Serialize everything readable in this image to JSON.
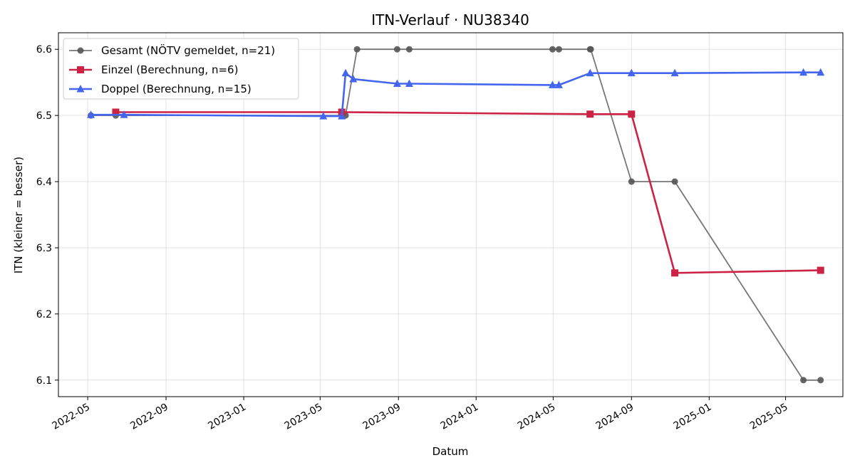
{
  "chart_data": {
    "type": "line",
    "title": "ITN-Verlauf · NU38340",
    "xlabel": "Datum",
    "ylabel": "ITN  (kleiner = besser)",
    "xlim": [
      "2022-03-16",
      "2025-07-30"
    ],
    "ylim": [
      6.075,
      6.625
    ],
    "x_ticks": [
      "2022-05",
      "2022-09",
      "2023-01",
      "2023-05",
      "2023-09",
      "2024-01",
      "2024-05",
      "2024-09",
      "2025-01",
      "2025-05"
    ],
    "x_tick_dates": [
      "2022-05-01",
      "2022-09-01",
      "2023-01-01",
      "2023-05-01",
      "2023-09-01",
      "2024-01-01",
      "2024-05-01",
      "2024-09-01",
      "2025-01-01",
      "2025-05-01"
    ],
    "y_ticks": [
      6.1,
      6.2,
      6.3,
      6.4,
      6.5,
      6.6
    ],
    "y_tick_labels": [
      "6.1",
      "6.2",
      "6.3",
      "6.4",
      "6.5",
      "6.6"
    ],
    "grid": true,
    "legend": "top-left",
    "series": [
      {
        "name": "Gesamt (NÖTV gemeldet, n=21)",
        "color": "#555555",
        "marker": "circle",
        "points": [
          {
            "x": "2022-05-06",
            "y": 6.5
          },
          {
            "x": "2022-06-14",
            "y": 6.5
          },
          {
            "x": "2023-06-04",
            "y": 6.5
          },
          {
            "x": "2023-06-10",
            "y": 6.5
          },
          {
            "x": "2023-06-28",
            "y": 6.6
          },
          {
            "x": "2023-08-30",
            "y": 6.6
          },
          {
            "x": "2023-09-18",
            "y": 6.6
          },
          {
            "x": "2024-04-30",
            "y": 6.6
          },
          {
            "x": "2024-05-10",
            "y": 6.6
          },
          {
            "x": "2024-06-28",
            "y": 6.6
          },
          {
            "x": "2024-06-29",
            "y": 6.6
          },
          {
            "x": "2024-09-01",
            "y": 6.4
          },
          {
            "x": "2024-11-08",
            "y": 6.4
          },
          {
            "x": "2025-05-29",
            "y": 6.1
          },
          {
            "x": "2025-06-25",
            "y": 6.1
          }
        ]
      },
      {
        "name": "Einzel (Berechnung, n=6)",
        "color": "#cc2244",
        "marker": "square",
        "points": [
          {
            "x": "2022-06-14",
            "y": 6.505
          },
          {
            "x": "2023-06-04",
            "y": 6.505
          },
          {
            "x": "2024-06-28",
            "y": 6.502
          },
          {
            "x": "2024-09-01",
            "y": 6.502
          },
          {
            "x": "2024-11-08",
            "y": 6.262
          },
          {
            "x": "2025-06-25",
            "y": 6.266
          }
        ]
      },
      {
        "name": "Doppel (Berechnung, n=15)",
        "color": "#4466ee",
        "marker": "triangle",
        "points": [
          {
            "x": "2022-05-06",
            "y": 6.501
          },
          {
            "x": "2022-06-27",
            "y": 6.501
          },
          {
            "x": "2023-05-06",
            "y": 6.499
          },
          {
            "x": "2023-06-04",
            "y": 6.499
          },
          {
            "x": "2023-06-10",
            "y": 6.564
          },
          {
            "x": "2023-06-22",
            "y": 6.555
          },
          {
            "x": "2023-08-30",
            "y": 6.548
          },
          {
            "x": "2023-09-18",
            "y": 6.548
          },
          {
            "x": "2024-04-30",
            "y": 6.546
          },
          {
            "x": "2024-05-10",
            "y": 6.546
          },
          {
            "x": "2024-06-28",
            "y": 6.564
          },
          {
            "x": "2024-09-01",
            "y": 6.564
          },
          {
            "x": "2024-11-08",
            "y": 6.564
          },
          {
            "x": "2025-05-29",
            "y": 6.565
          },
          {
            "x": "2025-06-25",
            "y": 6.565
          }
        ]
      }
    ]
  }
}
